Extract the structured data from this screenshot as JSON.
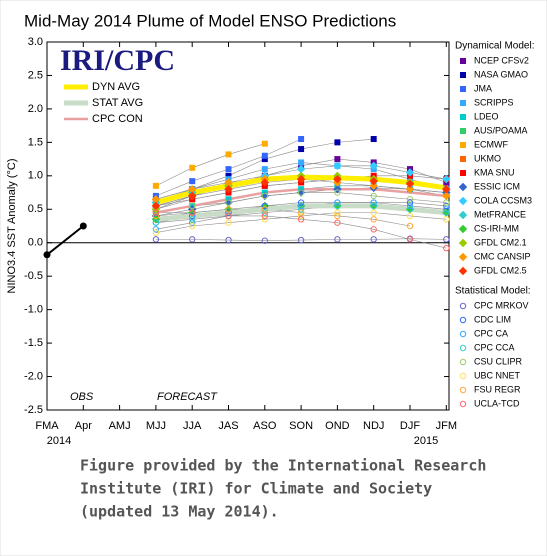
{
  "chart_data": {
    "type": "line",
    "title": "Mid-May 2014 Plume of Model ENSO Predictions",
    "y_label": "NINO3.4 SST Anomaly (°C)",
    "logo": "IRI/CPC",
    "annotations": [
      "OBS",
      "FORECAST"
    ],
    "caption": [
      "Figure provided by the International Research",
      "Institute (IRI) for Climate and Society",
      "(updated 13 May 2014)."
    ],
    "categories": [
      "FMA",
      "Apr",
      "AMJ",
      "MJJ",
      "JJA",
      "JAS",
      "ASO",
      "SON",
      "OND",
      "NDJ",
      "DJF",
      "JFM"
    ],
    "year_labels": [
      "2014",
      "2015"
    ],
    "ylim": [
      -2.5,
      3
    ],
    "yticks": [
      {
        "value": 3,
        "label": "3.0"
      },
      2.5,
      {
        "value": 2,
        "label": "2.0"
      },
      1.5,
      {
        "value": 1,
        "label": "1.0"
      },
      0.5,
      {
        "value": 0,
        "label": "0.0"
      },
      -0.5,
      {
        "value": -1,
        "label": "-1.0"
      },
      -1.5,
      {
        "value": -2,
        "label": "-2.0"
      },
      -2.5
    ],
    "legend_groups": {
      "dynamical": "Dynamical Model:",
      "statistical": "Statistical Model:"
    },
    "series": [
      {
        "name": "OBS",
        "group": "obs",
        "color": "#000000",
        "values": [
          -0.18,
          0.25,
          null,
          null,
          null,
          null,
          null,
          null,
          null,
          null,
          null,
          null
        ]
      },
      {
        "name": "NCEP CFSv2",
        "group": "dynamical",
        "marker": "square",
        "color": "#660099",
        "values": [
          null,
          null,
          null,
          0.5,
          0.7,
          0.9,
          1.0,
          1.15,
          1.25,
          1.2,
          1.1,
          0.9
        ]
      },
      {
        "name": "NASA GMAO",
        "group": "dynamical",
        "marker": "square",
        "color": "#0000aa",
        "values": [
          null,
          null,
          null,
          0.65,
          0.8,
          1.0,
          1.25,
          1.4,
          1.5,
          1.55,
          null,
          null
        ]
      },
      {
        "name": "JMA",
        "group": "dynamical",
        "marker": "square",
        "color": "#3366ff",
        "values": [
          null,
          null,
          null,
          0.7,
          0.92,
          1.1,
          1.3,
          1.55,
          null,
          null,
          null,
          null
        ]
      },
      {
        "name": "SCRIPPS",
        "group": "dynamical",
        "marker": "square",
        "color": "#33aaff",
        "values": [
          null,
          null,
          null,
          0.6,
          0.8,
          0.95,
          1.1,
          1.2,
          1.15,
          1.1,
          0.95,
          0.8
        ]
      },
      {
        "name": "LDEO",
        "group": "dynamical",
        "marker": "square",
        "color": "#00cccc",
        "values": [
          null,
          null,
          null,
          0.45,
          0.55,
          0.65,
          0.75,
          0.8,
          0.85,
          0.85,
          0.8,
          0.75
        ]
      },
      {
        "name": "AUS/POAMA",
        "group": "dynamical",
        "marker": "square",
        "color": "#33cc66",
        "values": [
          null,
          null,
          null,
          0.55,
          0.65,
          0.75,
          0.85,
          0.9,
          0.95,
          null,
          null,
          null
        ]
      },
      {
        "name": "ECMWF",
        "group": "dynamical",
        "marker": "square",
        "color": "#ffaa00",
        "values": [
          null,
          null,
          null,
          0.85,
          1.12,
          1.32,
          1.48,
          null,
          null,
          null,
          null,
          null
        ]
      },
      {
        "name": "UKMO",
        "group": "dynamical",
        "marker": "square",
        "color": "#ff6600",
        "values": [
          null,
          null,
          null,
          0.6,
          0.75,
          0.85,
          null,
          null,
          null,
          null,
          null,
          null
        ]
      },
      {
        "name": "KMA SNU",
        "group": "dynamical",
        "marker": "square",
        "color": "#ff0000",
        "values": [
          null,
          null,
          null,
          0.5,
          0.65,
          0.75,
          0.85,
          0.9,
          0.95,
          1.0,
          1.0,
          0.95
        ]
      },
      {
        "name": "ESSIC ICM",
        "group": "dynamical",
        "marker": "diamond",
        "color": "#3366cc",
        "values": [
          null,
          null,
          null,
          0.4,
          0.5,
          0.6,
          0.7,
          0.75,
          0.8,
          0.82,
          0.8,
          0.75
        ]
      },
      {
        "name": "COLA CCSM3",
        "group": "dynamical",
        "marker": "diamond",
        "color": "#33ccff",
        "values": [
          null,
          null,
          null,
          0.55,
          0.7,
          0.85,
          1.0,
          1.1,
          1.15,
          1.15,
          1.05,
          0.95
        ]
      },
      {
        "name": "MetFRANCE",
        "group": "dynamical",
        "marker": "diamond",
        "color": "#33cccc",
        "values": [
          null,
          null,
          null,
          0.6,
          0.75,
          0.85,
          null,
          null,
          null,
          null,
          null,
          null
        ]
      },
      {
        "name": "CS-IRI-MM",
        "group": "dynamical",
        "marker": "diamond",
        "color": "#33cc33",
        "values": [
          null,
          null,
          null,
          0.35,
          0.45,
          0.5,
          0.55,
          0.55,
          0.55,
          0.55,
          0.5,
          0.45
        ]
      },
      {
        "name": "GFDL CM2.1",
        "group": "dynamical",
        "marker": "diamond",
        "color": "#99cc00",
        "values": [
          null,
          null,
          null,
          0.5,
          0.7,
          0.85,
          0.95,
          1.0,
          1.0,
          0.95,
          0.9,
          0.8
        ]
      },
      {
        "name": "CMC CANSIP",
        "group": "dynamical",
        "marker": "diamond",
        "color": "#ff9900",
        "values": [
          null,
          null,
          null,
          0.65,
          0.8,
          0.9,
          0.95,
          0.95,
          0.9,
          0.85,
          0.8,
          0.7
        ]
      },
      {
        "name": "GFDL CM2.5",
        "group": "dynamical",
        "marker": "diamond",
        "color": "#ff3300",
        "values": [
          null,
          null,
          null,
          0.55,
          0.7,
          0.8,
          0.9,
          0.95,
          0.95,
          0.92,
          0.88,
          0.8
        ]
      },
      {
        "name": "CPC MRKOV",
        "group": "statistical",
        "marker": "circle",
        "color": "#6666cc",
        "values": [
          null,
          null,
          null,
          0.05,
          0.05,
          0.04,
          0.03,
          0.04,
          0.05,
          0.05,
          0.06,
          0.05
        ]
      },
      {
        "name": "CDC LIM",
        "group": "statistical",
        "marker": "circle",
        "color": "#3366ff",
        "values": [
          null,
          null,
          null,
          0.3,
          0.4,
          0.45,
          0.55,
          0.6,
          0.6,
          0.6,
          0.6,
          0.55
        ]
      },
      {
        "name": "CPC CA",
        "group": "statistical",
        "marker": "circle",
        "color": "#33aaff",
        "values": [
          null,
          null,
          null,
          0.2,
          0.3,
          0.4,
          0.5,
          0.55,
          0.6,
          0.6,
          0.55,
          0.5
        ]
      },
      {
        "name": "CPC CCA",
        "group": "statistical",
        "marker": "circle",
        "color": "#33cccc",
        "values": [
          null,
          null,
          null,
          0.3,
          0.35,
          0.4,
          0.45,
          0.5,
          0.55,
          0.55,
          0.5,
          0.45
        ]
      },
      {
        "name": "CSU CLIPR",
        "group": "statistical",
        "marker": "circle",
        "color": "#99cc66",
        "values": [
          null,
          null,
          null,
          0.45,
          0.55,
          0.6,
          0.7,
          0.75,
          0.75,
          0.7,
          0.65,
          0.6
        ]
      },
      {
        "name": "UBC NNET",
        "group": "statistical",
        "marker": "circle",
        "color": "#ffdd55",
        "values": [
          null,
          null,
          null,
          0.15,
          0.25,
          0.3,
          0.35,
          0.4,
          0.45,
          0.45,
          0.4,
          0.35
        ]
      },
      {
        "name": "FSU REGR",
        "group": "statistical",
        "marker": "circle",
        "color": "#ffaa33",
        "values": [
          null,
          null,
          null,
          0.4,
          0.45,
          0.5,
          0.5,
          0.45,
          0.4,
          0.35,
          0.25,
          null
        ]
      },
      {
        "name": "UCLA-TCD",
        "group": "statistical",
        "marker": "circle",
        "color": "#ff6666",
        "values": [
          null,
          null,
          null,
          0.45,
          0.45,
          0.4,
          0.4,
          0.35,
          0.3,
          0.2,
          0.05,
          -0.08
        ]
      },
      {
        "name": "DYN AVG",
        "group": "average",
        "width": 5,
        "color": "#ffee00",
        "values": [
          null,
          null,
          null,
          0.6,
          0.75,
          0.85,
          0.95,
          0.98,
          0.97,
          0.95,
          0.9,
          0.82
        ]
      },
      {
        "name": "STAT AVG",
        "group": "average",
        "width": 5,
        "color": "#c8dcc8",
        "values": [
          null,
          null,
          null,
          0.35,
          0.4,
          0.45,
          0.5,
          0.55,
          0.55,
          0.55,
          0.5,
          0.45
        ]
      },
      {
        "name": "CPC CON",
        "group": "average",
        "width": 2.5,
        "color": "#e8a0a0",
        "values": [
          null,
          null,
          null,
          0.45,
          0.55,
          0.65,
          0.75,
          0.8,
          0.8,
          0.8,
          0.75,
          0.7
        ]
      }
    ]
  }
}
